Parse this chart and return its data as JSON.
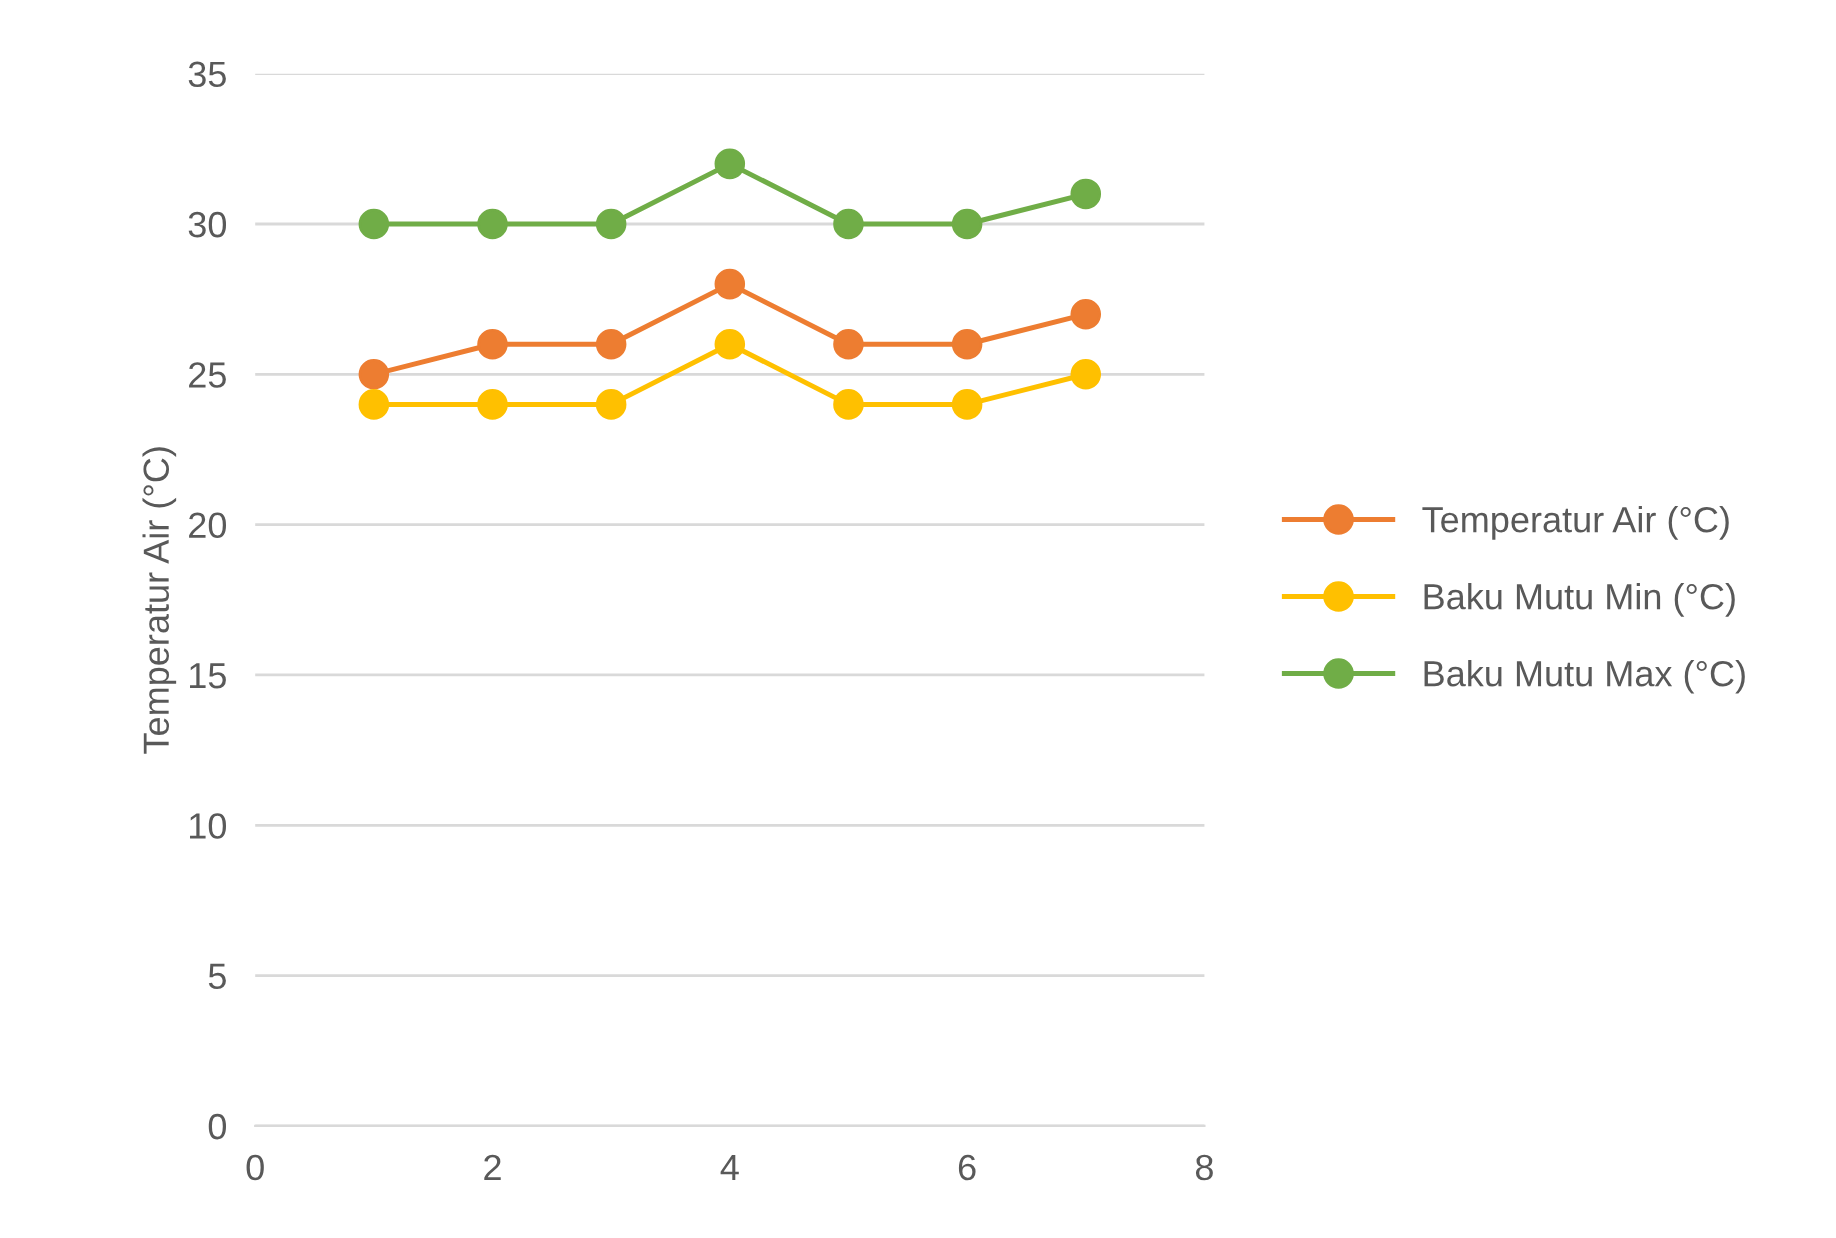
{
  "chart_data": {
    "type": "line",
    "ylabel": "Temperatur Air (°C)",
    "x": [
      1,
      2,
      3,
      4,
      5,
      6,
      7
    ],
    "series": [
      {
        "name": "Temperatur Air (°C)",
        "color": "#ed7d31",
        "values": [
          25,
          26,
          26,
          28,
          26,
          26,
          27
        ]
      },
      {
        "name": "Baku Mutu Min (°C)",
        "color": "#ffc000",
        "values": [
          24,
          24,
          24,
          26,
          24,
          24,
          25
        ]
      },
      {
        "name": "Baku Mutu Max (°C)",
        "color": "#70ad47",
        "values": [
          30,
          30,
          30,
          32,
          30,
          30,
          31
        ]
      }
    ],
    "xlim": [
      0,
      8
    ],
    "xticks": [
      0,
      2,
      4,
      6,
      8
    ],
    "ylim": [
      0,
      35
    ],
    "yticks": [
      0,
      5,
      10,
      15,
      20,
      25,
      30,
      35
    ],
    "grid": "y",
    "legend": "right",
    "marker": "circle",
    "line_style": "solid"
  }
}
